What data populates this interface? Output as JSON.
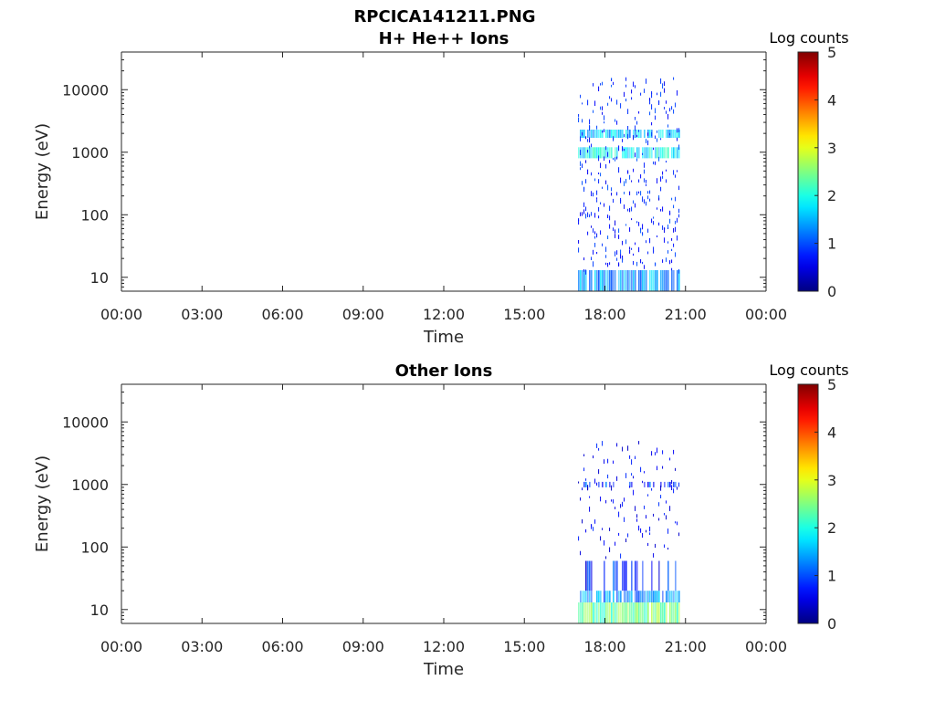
{
  "figure": {
    "title": "RPCICA141211.PNG"
  },
  "chart_data": [
    {
      "type": "heatmap",
      "title": "H+ He++ Ions",
      "xlabel": "Time",
      "ylabel": "Energy (eV)",
      "y_scale": "log",
      "xlim": [
        "00:00",
        "24:00"
      ],
      "ylim": [
        6,
        40000
      ],
      "x_tick_labels": [
        "00:00",
        "03:00",
        "06:00",
        "09:00",
        "12:00",
        "15:00",
        "18:00",
        "21:00",
        "00:00"
      ],
      "y_ticks": [
        10,
        100,
        1000,
        10000
      ],
      "y_tick_labels": [
        "10",
        "100",
        "1000",
        "10000"
      ],
      "colorbar": {
        "label": "Log counts",
        "range": [
          0,
          5
        ],
        "tick_labels": [
          "0",
          "1",
          "2",
          "3",
          "4",
          "5"
        ],
        "colormap": "jet"
      },
      "data_window": {
        "start": "17:00",
        "end": "20:45"
      },
      "bands": [
        {
          "energy_min": 6,
          "energy_max": 13,
          "level": 1.4,
          "density": 0.85
        },
        {
          "energy_min": 1700,
          "energy_max": 2300,
          "level": 1.6,
          "density": 0.8
        },
        {
          "energy_min": 800,
          "energy_max": 1200,
          "level": 1.9,
          "density": 0.85
        },
        {
          "energy_min": 13,
          "energy_max": 16000,
          "level": 0.8,
          "density": 0.06
        }
      ],
      "grid": false
    },
    {
      "type": "heatmap",
      "title": "Other Ions",
      "xlabel": "Time",
      "ylabel": "Energy (eV)",
      "y_scale": "log",
      "xlim": [
        "00:00",
        "24:00"
      ],
      "ylim": [
        6,
        40000
      ],
      "x_tick_labels": [
        "00:00",
        "03:00",
        "06:00",
        "09:00",
        "12:00",
        "15:00",
        "18:00",
        "21:00",
        "00:00"
      ],
      "y_ticks": [
        10,
        100,
        1000,
        10000
      ],
      "y_tick_labels": [
        "10",
        "100",
        "1000",
        "10000"
      ],
      "colorbar": {
        "label": "Log counts",
        "range": [
          0,
          5
        ],
        "tick_labels": [
          "0",
          "1",
          "2",
          "3",
          "4",
          "5"
        ],
        "colormap": "jet"
      },
      "data_window": {
        "start": "17:00",
        "end": "20:45"
      },
      "bands": [
        {
          "energy_min": 6,
          "energy_max": 13,
          "level": 2.4,
          "density": 0.95
        },
        {
          "energy_min": 13,
          "energy_max": 20,
          "level": 1.3,
          "density": 0.85
        },
        {
          "energy_min": 20,
          "energy_max": 60,
          "level": 0.8,
          "density": 0.3
        },
        {
          "energy_min": 900,
          "energy_max": 1100,
          "level": 0.9,
          "density": 0.35
        },
        {
          "energy_min": 60,
          "energy_max": 5000,
          "level": 0.6,
          "density": 0.03
        }
      ],
      "grid": false
    }
  ]
}
